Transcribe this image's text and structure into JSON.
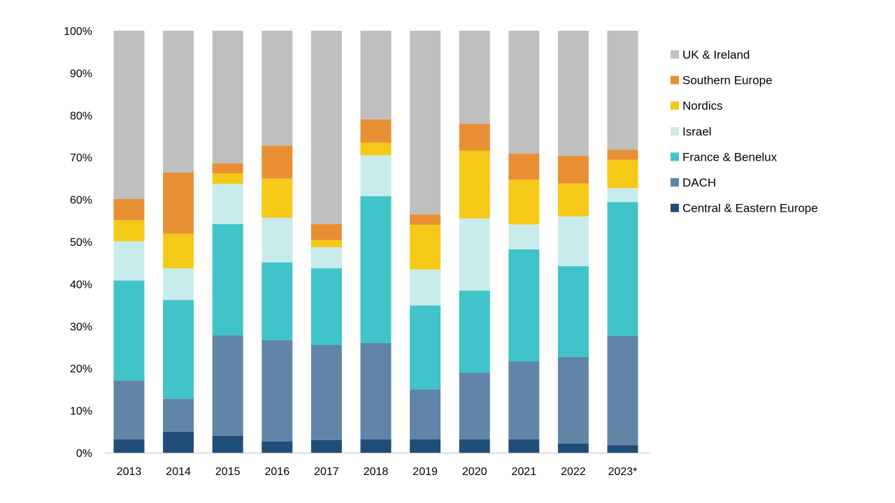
{
  "chart_data": {
    "type": "bar",
    "stacked": true,
    "percent": true,
    "categories": [
      "2013",
      "2014",
      "2015",
      "2016",
      "2017",
      "2018",
      "2019",
      "2020",
      "2021",
      "2022",
      "2023*"
    ],
    "y_ticks": [
      "0%",
      "10%",
      "20%",
      "30%",
      "40%",
      "50%",
      "60%",
      "70%",
      "80%",
      "90%",
      "100%"
    ],
    "ylim": [
      0,
      100
    ],
    "grid": false,
    "legend_position": "right",
    "series": [
      {
        "name": "Central & Eastern Europe",
        "color": "#1f4e79",
        "values": [
          3.2,
          5.0,
          4.0,
          2.7,
          3.0,
          3.2,
          3.2,
          3.2,
          3.2,
          2.2,
          1.8
        ]
      },
      {
        "name": "DACH",
        "color": "#6085a7",
        "values": [
          13.9,
          7.8,
          23.8,
          24.0,
          22.5,
          22.8,
          11.8,
          15.8,
          18.4,
          20.5,
          25.9
        ]
      },
      {
        "name": "France & Benelux",
        "color": "#40c3c9",
        "values": [
          23.7,
          23.4,
          26.4,
          18.4,
          18.2,
          34.8,
          19.9,
          19.4,
          26.6,
          21.5,
          31.7
        ]
      },
      {
        "name": "Israel",
        "color": "#c8ecec",
        "values": [
          9.3,
          7.5,
          9.5,
          10.6,
          5.0,
          9.7,
          8.5,
          17.1,
          5.9,
          11.8,
          3.3
        ]
      },
      {
        "name": "Nordics",
        "color": "#f5c917",
        "values": [
          5.0,
          8.2,
          2.5,
          9.3,
          1.7,
          3.0,
          10.6,
          16.1,
          10.6,
          7.8,
          6.7
        ]
      },
      {
        "name": "Southern Europe",
        "color": "#e88f34",
        "values": [
          5.0,
          14.5,
          2.4,
          7.8,
          3.8,
          5.5,
          2.5,
          6.3,
          6.2,
          6.6,
          2.4
        ]
      },
      {
        "name": "UK & Ireland",
        "color": "#bfbfbf",
        "values": [
          39.9,
          33.6,
          31.4,
          27.2,
          45.8,
          21.0,
          43.5,
          22.1,
          29.1,
          29.6,
          28.2
        ]
      }
    ],
    "legend_order": [
      "UK & Ireland",
      "Southern Europe",
      "Nordics",
      "Israel",
      "France & Benelux",
      "DACH",
      "Central & Eastern Europe"
    ]
  }
}
